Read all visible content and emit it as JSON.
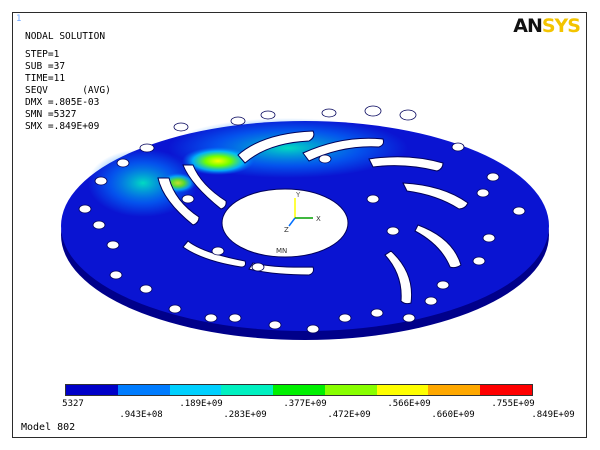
{
  "window": {
    "corner_number": "1",
    "logo": {
      "left": "AN",
      "right": "SYS"
    }
  },
  "info": {
    "title": "NODAL SOLUTION",
    "lines": [
      "STEP=1",
      "SUB =37",
      "TIME=11",
      "SEQV      (AVG)",
      "DMX =.805E-03",
      "SMN =5327",
      "SMX =.849E+09"
    ]
  },
  "triad": {
    "y": "Y",
    "z": "Z",
    "x": "X"
  },
  "min_marker": "MN",
  "legend": {
    "colors": [
      "#0000c8",
      "#007cff",
      "#00d0ff",
      "#00f0c0",
      "#00f000",
      "#88ff00",
      "#ffff00",
      "#ffa800",
      "#ff0000"
    ],
    "labels_row1": [
      "5327",
      ".189E+09",
      ".377E+09",
      ".566E+09",
      ".755E+09"
    ],
    "labels_row2": [
      ".943E+08",
      ".283E+09",
      ".472E+09",
      ".660E+09",
      ".849E+09"
    ]
  },
  "footer": "Model 802"
}
